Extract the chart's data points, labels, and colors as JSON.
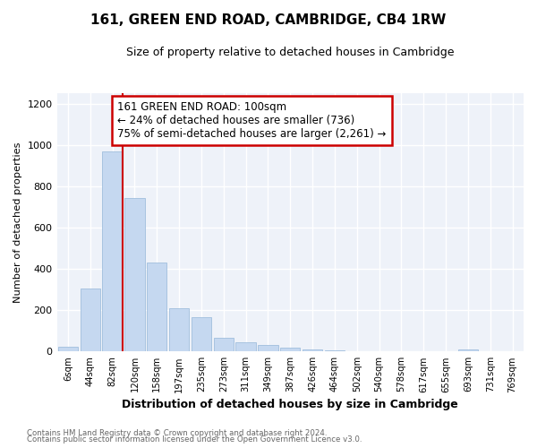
{
  "title": "161, GREEN END ROAD, CAMBRIDGE, CB4 1RW",
  "subtitle": "Size of property relative to detached houses in Cambridge",
  "xlabel": "Distribution of detached houses by size in Cambridge",
  "ylabel": "Number of detached properties",
  "bar_labels": [
    "6sqm",
    "44sqm",
    "82sqm",
    "120sqm",
    "158sqm",
    "197sqm",
    "235sqm",
    "273sqm",
    "311sqm",
    "349sqm",
    "387sqm",
    "426sqm",
    "464sqm",
    "502sqm",
    "540sqm",
    "578sqm",
    "617sqm",
    "655sqm",
    "693sqm",
    "731sqm",
    "769sqm"
  ],
  "bar_values": [
    22,
    305,
    970,
    745,
    430,
    210,
    165,
    68,
    45,
    32,
    18,
    10,
    6,
    3,
    2,
    1,
    0,
    0,
    10,
    0,
    0
  ],
  "bar_color": "#c5d8f0",
  "bar_edge_color": "#a0bedd",
  "property_sqm": 100,
  "annotation_title": "161 GREEN END ROAD: 100sqm",
  "annotation_line1": "← 24% of detached houses are smaller (736)",
  "annotation_line2": "75% of semi-detached houses are larger (2,261) →",
  "annotation_box_color": "#ffffff",
  "annotation_box_edge": "#cc0000",
  "vline_color": "#cc0000",
  "ylim": [
    0,
    1250
  ],
  "yticks": [
    0,
    200,
    400,
    600,
    800,
    1000,
    1200
  ],
  "background_color": "#eef2f9",
  "grid_color": "#ffffff",
  "fig_bg_color": "#ffffff",
  "footer1": "Contains HM Land Registry data © Crown copyright and database right 2024.",
  "footer2": "Contains public sector information licensed under the Open Government Licence v3.0."
}
